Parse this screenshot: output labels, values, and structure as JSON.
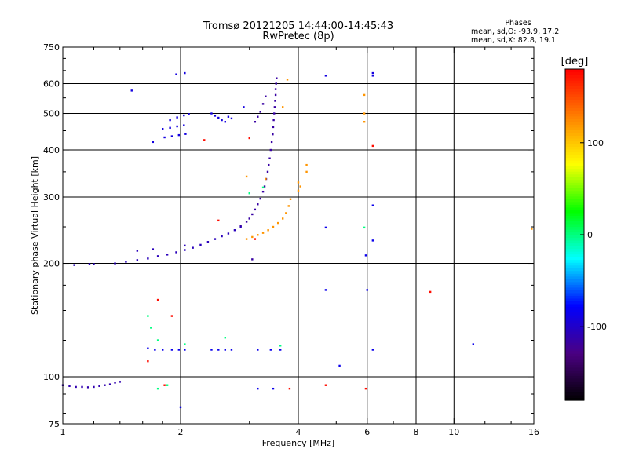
{
  "chart_data": {
    "type": "scatter",
    "title": "Tromsø 20121205 14:44:00-14:45:43",
    "subtitle": "RwPretec (8p)",
    "xlabel": "Frequency [MHz]",
    "ylabel": "Stationary phase Virtual Height [km]",
    "x_scale": "log",
    "y_scale": "log",
    "xlim": [
      1,
      16
    ],
    "ylim": [
      75,
      750
    ],
    "x_ticks": [
      1,
      2,
      4,
      6,
      8,
      10,
      16
    ],
    "x_tick_labels": [
      "1",
      "2",
      "4",
      "6",
      "8",
      "10",
      "16"
    ],
    "y_ticks": [
      75,
      100,
      200,
      300,
      400,
      500,
      600,
      750
    ],
    "y_tick_labels": [
      "75",
      "100",
      "200",
      "300",
      "400",
      "500",
      "600",
      "750"
    ],
    "grid": true,
    "phase_stats": {
      "header": "Phases",
      "o_line": "mean, sd,O: -93.9, 17.2",
      "x_line": "mean, sd,X:  82.8, 19.1"
    },
    "colorbar": {
      "label": "[deg]",
      "range": [
        -180,
        180
      ],
      "ticks": [
        100,
        0,
        -100
      ],
      "tick_labels": [
        "100",
        "0",
        "-100"
      ],
      "colors": [
        "#000000",
        "#4b0082",
        "#0000ff",
        "#00ffff",
        "#00ff00",
        "#ffff00",
        "#ff8000",
        "#ff0000"
      ]
    },
    "series": [
      {
        "phase": -110,
        "points": [
          [
            1.0,
            95
          ],
          [
            1.04,
            94.5
          ],
          [
            1.08,
            94
          ],
          [
            1.12,
            94
          ],
          [
            1.16,
            93.8
          ],
          [
            1.2,
            94
          ],
          [
            1.24,
            94.5
          ],
          [
            1.28,
            95
          ],
          [
            1.32,
            95.5
          ],
          [
            1.36,
            96.5
          ],
          [
            1.4,
            97
          ]
        ]
      },
      {
        "phase": -105,
        "points": [
          [
            1.07,
            198
          ],
          [
            1.17,
            199
          ],
          [
            1.2,
            199
          ],
          [
            1.36,
            200
          ],
          [
            1.45,
            202
          ],
          [
            1.55,
            204
          ],
          [
            1.65,
            206
          ],
          [
            1.75,
            209
          ],
          [
            1.85,
            211
          ],
          [
            1.95,
            214
          ],
          [
            2.05,
            217
          ],
          [
            2.15,
            220
          ],
          [
            2.25,
            224
          ],
          [
            2.35,
            228
          ],
          [
            2.45,
            232
          ],
          [
            2.55,
            236
          ],
          [
            2.65,
            240
          ],
          [
            2.75,
            245
          ],
          [
            2.85,
            250
          ],
          [
            1.55,
            216
          ],
          [
            1.7,
            218
          ],
          [
            2.05,
            223
          ]
        ]
      },
      {
        "phase": -115,
        "points": [
          [
            2.85,
            252
          ],
          [
            2.95,
            258
          ],
          [
            3.0,
            263
          ],
          [
            3.05,
            270
          ],
          [
            3.1,
            278
          ],
          [
            3.15,
            287
          ],
          [
            3.2,
            297
          ],
          [
            3.25,
            310
          ],
          [
            3.28,
            320
          ],
          [
            3.31,
            335
          ],
          [
            3.34,
            350
          ],
          [
            3.36,
            365
          ],
          [
            3.38,
            380
          ],
          [
            3.4,
            400
          ],
          [
            3.42,
            420
          ],
          [
            3.44,
            440
          ],
          [
            3.45,
            460
          ],
          [
            3.46,
            480
          ],
          [
            3.47,
            500
          ],
          [
            3.48,
            520
          ],
          [
            3.49,
            540
          ],
          [
            3.5,
            560
          ],
          [
            3.5,
            580
          ],
          [
            3.51,
            600
          ],
          [
            3.52,
            620
          ],
          [
            3.1,
            475
          ],
          [
            3.15,
            490
          ],
          [
            3.2,
            505
          ],
          [
            3.25,
            530
          ],
          [
            3.3,
            555
          ],
          [
            3.05,
            205
          ]
        ]
      },
      {
        "phase": -90,
        "points": [
          [
            1.82,
            432
          ],
          [
            1.9,
            435
          ],
          [
            1.98,
            438
          ],
          [
            2.06,
            441
          ],
          [
            1.8,
            455
          ],
          [
            1.88,
            458
          ],
          [
            1.96,
            462
          ],
          [
            2.04,
            465
          ],
          [
            1.88,
            480
          ],
          [
            1.96,
            488
          ],
          [
            2.04,
            494
          ],
          [
            2.1,
            498
          ],
          [
            2.4,
            500
          ],
          [
            2.45,
            493
          ],
          [
            2.5,
            487
          ],
          [
            2.55,
            480
          ],
          [
            2.6,
            475
          ],
          [
            2.65,
            490
          ],
          [
            2.7,
            485
          ],
          [
            2.9,
            520
          ],
          [
            1.5,
            575
          ],
          [
            1.95,
            635
          ],
          [
            2.05,
            640
          ],
          [
            1.7,
            420
          ],
          [
            4.7,
            630
          ],
          [
            6.2,
            640
          ],
          [
            6.2,
            630
          ]
        ]
      },
      {
        "phase": -85,
        "points": [
          [
            1.65,
            119
          ],
          [
            1.72,
            118
          ],
          [
            1.8,
            118
          ],
          [
            1.9,
            118
          ],
          [
            1.98,
            118
          ],
          [
            2.05,
            118
          ],
          [
            2.4,
            118
          ],
          [
            2.5,
            118
          ],
          [
            2.6,
            118
          ],
          [
            2.7,
            118
          ],
          [
            3.15,
            118
          ],
          [
            3.4,
            118
          ],
          [
            3.6,
            118
          ],
          [
            6.2,
            118
          ],
          [
            4.7,
            170
          ],
          [
            6.0,
            170
          ],
          [
            6.2,
            230
          ],
          [
            6.2,
            285
          ],
          [
            4.7,
            249
          ],
          [
            5.95,
            210
          ],
          [
            3.45,
            93
          ],
          [
            5.1,
            107
          ],
          [
            11.2,
            122
          ],
          [
            2.0,
            83
          ],
          [
            3.15,
            93
          ]
        ]
      },
      {
        "phase": 120,
        "points": [
          [
            2.95,
            232
          ],
          [
            3.05,
            235
          ],
          [
            3.15,
            238
          ],
          [
            3.25,
            241
          ],
          [
            3.35,
            245
          ],
          [
            3.45,
            250
          ],
          [
            3.55,
            256
          ],
          [
            3.65,
            263
          ],
          [
            3.72,
            272
          ],
          [
            3.78,
            284
          ],
          [
            3.82,
            296
          ],
          [
            4.0,
            312
          ],
          [
            4.05,
            320
          ],
          [
            4.0,
            328
          ],
          [
            4.2,
            350
          ],
          [
            4.2,
            365
          ],
          [
            2.95,
            340
          ],
          [
            3.3,
            335
          ],
          [
            5.9,
            560
          ],
          [
            5.9,
            500
          ],
          [
            5.9,
            475
          ],
          [
            3.65,
            520
          ],
          [
            3.75,
            615
          ],
          [
            15.8,
            247
          ]
        ]
      },
      {
        "phase": 175,
        "points": [
          [
            3.1,
            232
          ],
          [
            1.75,
            160
          ],
          [
            2.5,
            260
          ],
          [
            2.3,
            425
          ],
          [
            3.0,
            430
          ],
          [
            6.2,
            410
          ],
          [
            8.7,
            168
          ],
          [
            1.65,
            110
          ],
          [
            1.82,
            95
          ],
          [
            3.8,
            93
          ],
          [
            4.7,
            95
          ],
          [
            5.95,
            93
          ],
          [
            1.9,
            145
          ]
        ]
      },
      {
        "phase": 0,
        "points": [
          [
            1.68,
            135
          ],
          [
            1.75,
            125
          ],
          [
            1.65,
            145
          ],
          [
            2.05,
            122
          ],
          [
            2.6,
            127
          ],
          [
            3.0,
            307
          ],
          [
            3.25,
            318
          ],
          [
            5.9,
            249
          ],
          [
            1.85,
            95
          ],
          [
            1.75,
            93
          ],
          [
            3.6,
            121
          ]
        ]
      }
    ]
  }
}
